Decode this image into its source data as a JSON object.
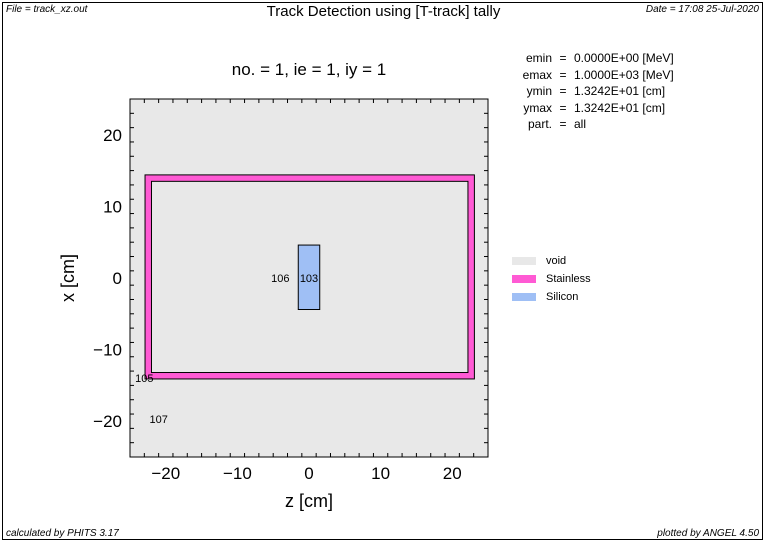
{
  "header": {
    "file_label": "File = track_xz.out",
    "title": "Track Detection using [T-track] tally",
    "date_label": "Date = 17:08 25-Jul-2020"
  },
  "subtitle": "no. =  1,  ie =  1,  iy =  1",
  "info": [
    {
      "key": "emin",
      "eq": "=",
      "value": "0.0000E+00 [MeV]"
    },
    {
      "key": "emax",
      "eq": "=",
      "value": "1.0000E+03 [MeV]"
    },
    {
      "key": "ymin",
      "eq": "=",
      "value": "1.3242E+01 [cm]"
    },
    {
      "key": "ymax",
      "eq": "=",
      "value": "1.3242E+01 [cm]"
    },
    {
      "key": "part.",
      "eq": "=",
      "value": "all"
    }
  ],
  "axes": {
    "xlabel": "z [cm]",
    "ylabel": "x [cm]",
    "x_range": [
      -25,
      25
    ],
    "y_range": [
      -25,
      25
    ],
    "x_ticks": [
      -20,
      -10,
      0,
      10,
      20
    ],
    "y_ticks": [
      -20,
      -10,
      0,
      10,
      20
    ],
    "x_tick_labels": [
      "−20",
      "−10",
      "0",
      "10",
      "20"
    ],
    "y_tick_labels": [
      "−20",
      "−10",
      "0",
      "10",
      "20"
    ]
  },
  "regions": [
    {
      "id": "106",
      "label_pos": [
        -4,
        0
      ]
    },
    {
      "id": "103",
      "label_pos": [
        0,
        0
      ]
    },
    {
      "id": "105",
      "label_pos": [
        -23,
        -14
      ]
    },
    {
      "id": "107",
      "label_pos": [
        -21,
        -19.7
      ]
    }
  ],
  "materials": [
    {
      "name": "void",
      "color": "#e8e8e8"
    },
    {
      "name": "Stainless",
      "color": "#ff5ad4"
    },
    {
      "name": "Silicon",
      "color": "#9fbff5"
    }
  ],
  "footer": {
    "left": "calculated by PHITS 3.17",
    "right": "plotted by ANGEL 4.50"
  },
  "colors": {
    "plot_background": "#e8e8e8",
    "stainless": "#ff5ad4",
    "silicon": "#9fbff5"
  }
}
